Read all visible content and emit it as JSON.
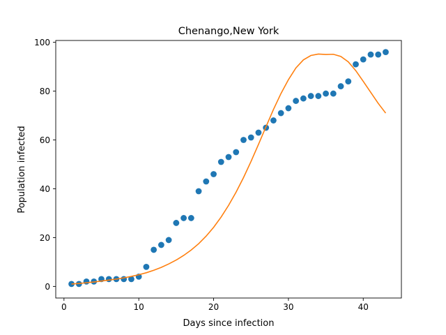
{
  "chart_data": {
    "type": "scatter",
    "title": "Chenango,New York",
    "xlabel": "Days since infection",
    "ylabel": "Population infected",
    "xlim": [
      -1.1,
      45.1
    ],
    "ylim": [
      -4.75,
      100.75
    ],
    "xticks": [
      0,
      10,
      20,
      30,
      40
    ],
    "yticks": [
      0,
      20,
      40,
      60,
      80,
      100
    ],
    "grid": false,
    "legend": "none",
    "series": [
      {
        "kind": "scatter",
        "color": "#1f77b4",
        "x": [
          1,
          2,
          3,
          4,
          5,
          6,
          7,
          8,
          9,
          10,
          11,
          12,
          13,
          14,
          15,
          16,
          17,
          18,
          19,
          20,
          21,
          22,
          23,
          24,
          25,
          26,
          27,
          28,
          29,
          30,
          31,
          32,
          33,
          34,
          35,
          36,
          37,
          38,
          39,
          40,
          41,
          42,
          43
        ],
        "y": [
          1,
          1,
          2,
          2,
          3,
          3,
          3,
          3,
          3,
          4,
          8,
          15,
          17,
          19,
          26,
          28,
          28,
          39,
          43,
          46,
          51,
          53,
          55,
          60,
          61,
          63,
          65,
          68,
          71,
          73,
          76,
          77,
          78,
          78,
          79,
          79,
          82,
          84,
          91,
          93,
          95,
          95,
          96
        ]
      },
      {
        "kind": "line",
        "color": "#ff7f0e",
        "x": [
          1,
          2,
          3,
          4,
          5,
          6,
          7,
          8,
          9,
          10,
          11,
          12,
          13,
          14,
          15,
          16,
          17,
          18,
          19,
          20,
          21,
          22,
          23,
          24,
          25,
          26,
          27,
          28,
          29,
          30,
          31,
          32,
          33,
          34,
          35,
          36,
          37,
          38,
          39,
          40,
          41,
          42,
          43
        ],
        "y": [
          1.0,
          1.2,
          1.5,
          1.8,
          2.2,
          2.6,
          3.0,
          3.5,
          4.1,
          4.8,
          5.6,
          6.6,
          7.8,
          9.2,
          10.8,
          12.7,
          14.9,
          17.5,
          20.6,
          24.2,
          28.4,
          33.2,
          38.6,
          44.6,
          51.2,
          58.2,
          65.4,
          72.5,
          79.0,
          84.7,
          89.5,
          92.8,
          94.6,
          95.2,
          95.0,
          95.1,
          94.2,
          92.0,
          88.4,
          84.0,
          79.5,
          75.0,
          71.0
        ]
      }
    ]
  }
}
